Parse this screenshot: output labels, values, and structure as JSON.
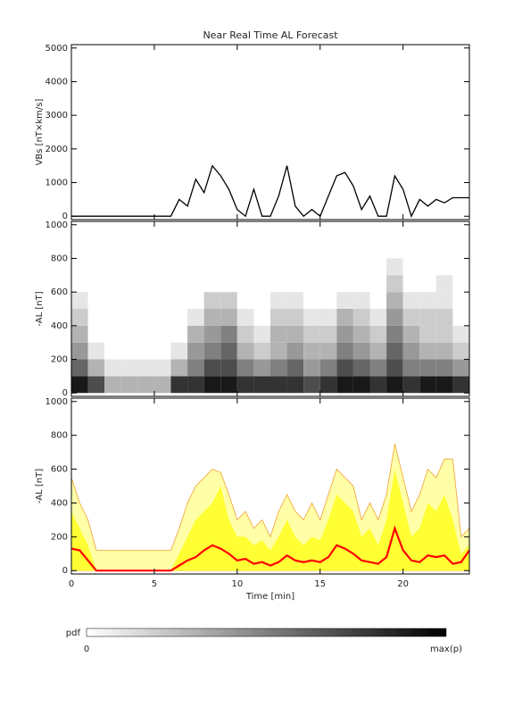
{
  "chart_data": [
    {
      "type": "line",
      "title": "Near Real Time AL Forecast",
      "ylabel": "VBs [nT×km/s]",
      "color": "#000000",
      "x": [
        0,
        0.5,
        1,
        1.5,
        2,
        2.5,
        3,
        3.5,
        4,
        4.5,
        5,
        5.5,
        6,
        6.5,
        7,
        7.5,
        8,
        8.5,
        9,
        9.5,
        10,
        10.5,
        11,
        11.5,
        12,
        12.5,
        13,
        13.5,
        14,
        14.5,
        15,
        15.5,
        16,
        16.5,
        17,
        17.5,
        18,
        18.5,
        19,
        19.5,
        20,
        20.5,
        21,
        21.5,
        22,
        22.5,
        23,
        23.5,
        24
      ],
      "values": [
        0,
        0,
        0,
        0,
        0,
        0,
        0,
        0,
        0,
        0,
        0,
        0,
        0,
        500,
        300,
        1100,
        700,
        1500,
        1200,
        800,
        200,
        0,
        800,
        0,
        0,
        600,
        1500,
        300,
        0,
        200,
        0,
        600,
        1200,
        1300,
        900,
        200,
        600,
        0,
        0,
        1200,
        800,
        0,
        500,
        300,
        500,
        400,
        550,
        550,
        550
      ],
      "xlim": [
        0,
        24
      ],
      "xticks": [
        0,
        5,
        10,
        15,
        20
      ],
      "ylim": [
        -100,
        5100
      ],
      "yticks": [
        0,
        1000,
        2000,
        3000,
        4000,
        5000
      ]
    },
    {
      "type": "heatmap",
      "ylabel": "-AL [nT]",
      "xbins": [
        0,
        1,
        2,
        3,
        4,
        5,
        6,
        7,
        8,
        9,
        10,
        11,
        12,
        13,
        14,
        15,
        16,
        17,
        18,
        19,
        20,
        21,
        22,
        23,
        24
      ],
      "ybins": [
        0,
        100,
        200,
        300,
        400,
        500,
        600,
        700,
        800
      ],
      "z": [
        [
          0.9,
          0.6,
          0.4,
          0.3,
          0.2,
          0.1,
          0,
          0
        ],
        [
          0.7,
          0.3,
          0.1,
          0,
          0,
          0,
          0,
          0
        ],
        [
          0.3,
          0.1,
          0,
          0,
          0,
          0,
          0,
          0
        ],
        [
          0.3,
          0.1,
          0,
          0,
          0,
          0,
          0,
          0
        ],
        [
          0.3,
          0.1,
          0,
          0,
          0,
          0,
          0,
          0
        ],
        [
          0.3,
          0.1,
          0,
          0,
          0,
          0,
          0,
          0
        ],
        [
          0.8,
          0.3,
          0.1,
          0,
          0,
          0,
          0,
          0
        ],
        [
          0.8,
          0.5,
          0.4,
          0.3,
          0.1,
          0,
          0,
          0
        ],
        [
          0.9,
          0.7,
          0.5,
          0.4,
          0.3,
          0.2,
          0,
          0
        ],
        [
          0.9,
          0.7,
          0.6,
          0.5,
          0.3,
          0.2,
          0,
          0
        ],
        [
          0.8,
          0.5,
          0.3,
          0.2,
          0.1,
          0,
          0,
          0
        ],
        [
          0.8,
          0.4,
          0.2,
          0.1,
          0,
          0,
          0,
          0
        ],
        [
          0.8,
          0.5,
          0.3,
          0.3,
          0.2,
          0.1,
          0,
          0
        ],
        [
          0.8,
          0.6,
          0.4,
          0.3,
          0.2,
          0.1,
          0,
          0
        ],
        [
          0.7,
          0.4,
          0.3,
          0.2,
          0.1,
          0,
          0,
          0
        ],
        [
          0.8,
          0.5,
          0.3,
          0.2,
          0.1,
          0,
          0,
          0
        ],
        [
          0.9,
          0.7,
          0.5,
          0.4,
          0.3,
          0.1,
          0,
          0
        ],
        [
          0.9,
          0.6,
          0.4,
          0.3,
          0.2,
          0.1,
          0,
          0
        ],
        [
          0.8,
          0.5,
          0.3,
          0.2,
          0.1,
          0,
          0,
          0
        ],
        [
          0.9,
          0.7,
          0.6,
          0.5,
          0.4,
          0.3,
          0.2,
          0.1
        ],
        [
          0.8,
          0.5,
          0.4,
          0.3,
          0.2,
          0.1,
          0,
          0
        ],
        [
          0.9,
          0.5,
          0.3,
          0.2,
          0.2,
          0.1,
          0,
          0
        ],
        [
          0.9,
          0.5,
          0.3,
          0.2,
          0.2,
          0.1,
          0.1,
          0
        ],
        [
          0.8,
          0.4,
          0.2,
          0.1,
          0,
          0,
          0,
          0
        ]
      ],
      "xlim": [
        0,
        24
      ],
      "xticks": [
        0,
        5,
        10,
        15,
        20
      ],
      "ylim": [
        -20,
        1020
      ],
      "yticks": [
        0,
        200,
        400,
        600,
        800,
        1000
      ]
    },
    {
      "type": "area",
      "ylabel": "-AL [nT]",
      "xlabel": "Time [min]",
      "x": [
        0,
        0.5,
        1,
        1.5,
        2,
        2.5,
        3,
        3.5,
        4,
        4.5,
        5,
        5.5,
        6,
        6.5,
        7,
        7.5,
        8,
        8.5,
        9,
        9.5,
        10,
        10.5,
        11,
        11.5,
        12,
        12.5,
        13,
        13.5,
        14,
        14.5,
        15,
        15.5,
        16,
        16.5,
        17,
        17.5,
        18,
        18.5,
        19,
        19.5,
        20,
        20.5,
        21,
        21.5,
        22,
        22.5,
        23,
        23.5,
        24
      ],
      "series": [
        {
          "style": "area",
          "color": "#ffffa8",
          "stroke": "#f0a030",
          "values": [
            550,
            400,
            300,
            120,
            120,
            120,
            120,
            120,
            120,
            120,
            120,
            120,
            120,
            250,
            400,
            500,
            550,
            600,
            580,
            450,
            300,
            350,
            250,
            300,
            200,
            350,
            450,
            350,
            300,
            400,
            300,
            450,
            600,
            550,
            500,
            300,
            400,
            300,
            450,
            750,
            550,
            350,
            450,
            600,
            550,
            660,
            660,
            200,
            250
          ]
        },
        {
          "style": "area",
          "color": "#ffff33",
          "values": [
            350,
            250,
            150,
            0,
            0,
            0,
            0,
            0,
            0,
            0,
            0,
            0,
            0,
            100,
            200,
            300,
            350,
            400,
            500,
            300,
            200,
            200,
            150,
            180,
            120,
            200,
            300,
            200,
            150,
            200,
            180,
            300,
            450,
            400,
            350,
            200,
            250,
            150,
            300,
            600,
            400,
            200,
            250,
            400,
            350,
            450,
            300,
            100,
            150
          ]
        },
        {
          "style": "line",
          "color": "#ff0000",
          "values": [
            130,
            120,
            60,
            0,
            0,
            0,
            0,
            0,
            0,
            0,
            0,
            0,
            0,
            30,
            60,
            80,
            120,
            150,
            130,
            100,
            60,
            70,
            40,
            50,
            30,
            50,
            90,
            60,
            50,
            60,
            50,
            80,
            150,
            130,
            100,
            60,
            50,
            40,
            80,
            250,
            120,
            60,
            50,
            90,
            80,
            90,
            40,
            50,
            120
          ]
        }
      ],
      "xlim": [
        0,
        24
      ],
      "xticks": [
        0,
        5,
        10,
        15,
        20
      ],
      "ylim": [
        -20,
        1020
      ],
      "yticks": [
        0,
        200,
        400,
        600,
        800,
        1000
      ]
    }
  ],
  "colorbar": {
    "label": "pdf",
    "min_label": "0",
    "max_label": "max(p)"
  }
}
